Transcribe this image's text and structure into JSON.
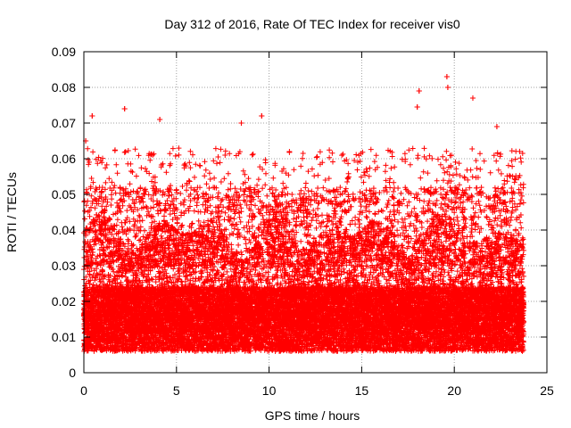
{
  "chart_data": {
    "type": "scatter",
    "title": "Day 312 of 2016, Rate Of TEC Index for receiver vis0",
    "xlabel": "GPS time / hours",
    "ylabel": "ROTI / TECUs",
    "xlim": [
      0,
      25
    ],
    "ylim": [
      0,
      0.09
    ],
    "x_ticks": [
      0,
      5,
      10,
      15,
      20,
      25
    ],
    "y_ticks": [
      0,
      0.01,
      0.02,
      0.03,
      0.04,
      0.05,
      0.06,
      0.07,
      0.08,
      0.09
    ],
    "x_tick_labels": [
      "0",
      "5",
      "10",
      "15",
      "20",
      "25"
    ],
    "y_tick_labels": [
      "0",
      "0.01",
      "0.02",
      "0.03",
      "0.04",
      "0.05",
      "0.06",
      "0.07",
      "0.08",
      "0.09"
    ],
    "grid": true,
    "marker": "plus",
    "series": [
      {
        "name": "ROTI",
        "color": "#ff0000",
        "time_range": [
          0,
          23.75
        ],
        "sampling_interval_hours": 0.0125,
        "typical_range": [
          0.005,
          0.05
        ],
        "notable_points": [
          {
            "x": 0.1,
            "y": 0.065
          },
          {
            "x": 0.45,
            "y": 0.072
          },
          {
            "x": 2.2,
            "y": 0.074
          },
          {
            "x": 4.1,
            "y": 0.071
          },
          {
            "x": 8.5,
            "y": 0.07
          },
          {
            "x": 9.6,
            "y": 0.072
          },
          {
            "x": 18.1,
            "y": 0.079
          },
          {
            "x": 18.0,
            "y": 0.0745
          },
          {
            "x": 19.6,
            "y": 0.083
          },
          {
            "x": 19.65,
            "y": 0.08
          },
          {
            "x": 21.0,
            "y": 0.077
          },
          {
            "x": 22.3,
            "y": 0.069
          }
        ]
      }
    ]
  }
}
